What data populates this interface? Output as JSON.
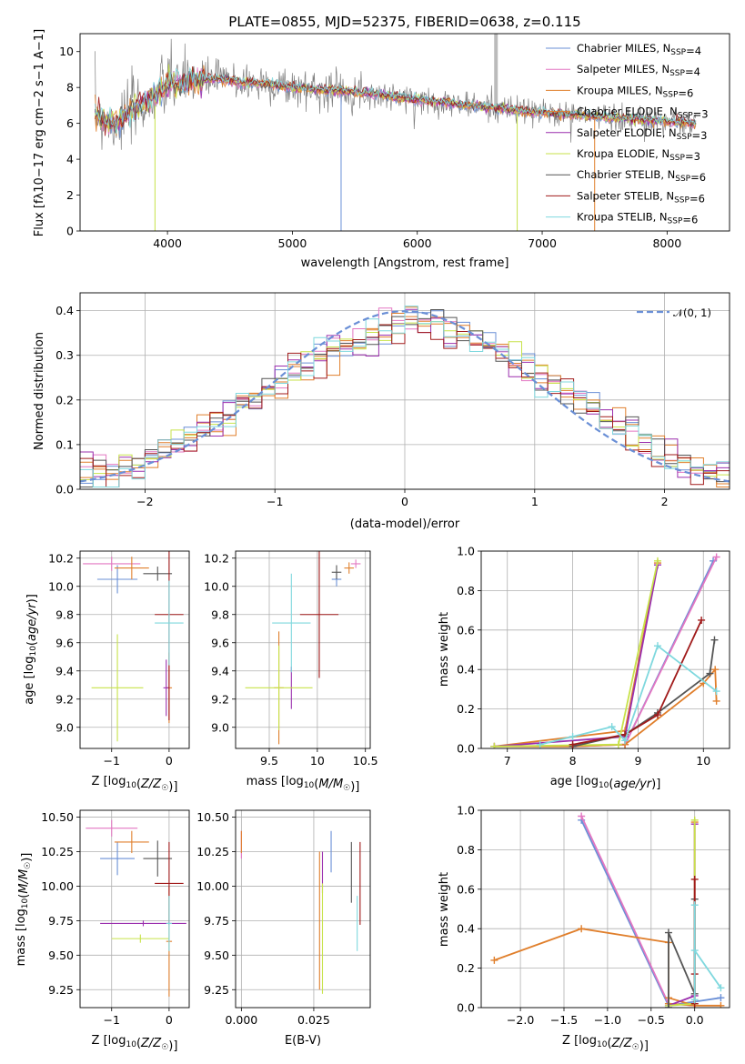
{
  "figure_title": "PLATE=0855, MJD=52375, FIBERID=0638, z=0.115",
  "colors": {
    "Chabrier MILES": "#6a8fd6",
    "Salpeter MILES": "#e377c2",
    "Kroupa MILES": "#e07f2c",
    "Chabrier ELODIE": "#e07f2c",
    "Salpeter ELODIE": "#9b2fae",
    "Kroupa ELODIE": "#c7e24a",
    "Chabrier STELIB": "#555555",
    "Salpeter STELIB": "#a01a1a",
    "Kroupa STELIB": "#7fd8de",
    "data": "#7f7f7f",
    "normal": "#6a8fd6"
  },
  "chart_data": [
    {
      "type": "line",
      "id": "spectrum",
      "title": "PLATE=0855, MJD=52375, FIBERID=0638, z=0.115",
      "xlabel": "wavelength [Angstrom, rest frame]",
      "ylabel": "Flux [fλ10⁻¹⁷ erg cm⁻² s⁻¹ A⁻¹]",
      "xlim": [
        3300,
        8500
      ],
      "ylim": [
        0,
        11
      ],
      "xticks": [
        4000,
        5000,
        6000,
        7000,
        8000
      ],
      "yticks": [
        0,
        2,
        4,
        6,
        8,
        10
      ],
      "grid": false,
      "legend_position": "top-right",
      "legend": [
        "Chabrier MILES, N_SSP=4",
        "Salpeter MILES, N_SSP=4",
        "Kroupa MILES, N_SSP=6",
        "Chabrier ELODIE, N_SSP=3",
        "Salpeter ELODIE, N_SSP=3",
        "Kroupa ELODIE, N_SSP=3",
        "Chabrier STELIB, N_SSP=6",
        "Salpeter STELIB, N_SSP=6",
        "Kroupa STELIB, N_SSP=6"
      ],
      "legend_display": [
        [
          "Chabrier MILES, N",
          "SSP",
          "=4"
        ],
        [
          "Salpeter MILES, N",
          "SSP",
          "=4"
        ],
        [
          "Kroupa MILES, N",
          "SSP",
          "=6"
        ],
        [
          "Chabrier ELODIE, N",
          "SSP",
          "=3"
        ],
        [
          "Salpeter ELODIE, N",
          "SSP",
          "=3"
        ],
        [
          "Kroupa ELODIE, N",
          "SSP",
          "=3"
        ],
        [
          "Chabrier STELIB, N",
          "SSP",
          "=6"
        ],
        [
          "Salpeter STELIB, N",
          "SSP",
          "=6"
        ],
        [
          "Kroupa STELIB, N",
          "SSP",
          "=6"
        ]
      ],
      "continuum_x": [
        3420,
        3500,
        3600,
        3700,
        3800,
        3900,
        4000,
        4100,
        4200,
        4400,
        4600,
        4800,
        5000,
        5200,
        5400,
        5600,
        5800,
        6000,
        6200,
        6400,
        6600,
        6800,
        7000,
        7200,
        7400,
        7600,
        7800,
        8000,
        8200
      ],
      "continuum_y": [
        6.6,
        6.2,
        6.0,
        6.6,
        7.0,
        7.6,
        8.1,
        8.2,
        8.4,
        8.5,
        8.3,
        8.2,
        8.0,
        7.9,
        7.8,
        7.7,
        7.5,
        7.3,
        7.2,
        7.0,
        6.9,
        6.7,
        6.6,
        6.5,
        6.4,
        6.3,
        6.2,
        6.1,
        6.0
      ]
    },
    {
      "type": "histogram",
      "id": "residuals",
      "xlabel": "(data-model)/error",
      "ylabel": "Normed distribution",
      "xlim": [
        -2.5,
        2.5
      ],
      "ylim": [
        0,
        0.44
      ],
      "xticks": [
        -2,
        -1,
        0,
        1,
        2
      ],
      "yticks": [
        0.0,
        0.1,
        0.2,
        0.3,
        0.4
      ],
      "grid": true,
      "legend_position": "top-right",
      "legend": [
        "N(0,1)"
      ],
      "bin_width": 0.1,
      "bin_start": -2.5,
      "mean_values": [
        0.04,
        0.035,
        0.03,
        0.04,
        0.055,
        0.07,
        0.085,
        0.1,
        0.115,
        0.13,
        0.145,
        0.165,
        0.185,
        0.205,
        0.225,
        0.245,
        0.26,
        0.28,
        0.3,
        0.31,
        0.32,
        0.33,
        0.345,
        0.355,
        0.37,
        0.375,
        0.37,
        0.37,
        0.36,
        0.35,
        0.34,
        0.32,
        0.305,
        0.29,
        0.275,
        0.255,
        0.24,
        0.22,
        0.2,
        0.18,
        0.16,
        0.14,
        0.12,
        0.1,
        0.085,
        0.07,
        0.06,
        0.05,
        0.04,
        0.035
      ],
      "series_names": [
        "Chabrier MILES",
        "Salpeter MILES",
        "Kroupa MILES",
        "Chabrier ELODIE",
        "Salpeter ELODIE",
        "Kroupa ELODIE",
        "Chabrier STELIB",
        "Salpeter STELIB",
        "Kroupa STELIB"
      ]
    },
    {
      "type": "errorbar",
      "id": "age-vs-Z",
      "xlabel": "Z [log₁₀(Z/Z☉)]",
      "ylabel": "age  [log₁₀(age/yr)]",
      "xlim": [
        -1.55,
        0.35
      ],
      "ylim": [
        8.85,
        10.25
      ],
      "xticks": [
        -1,
        0
      ],
      "yticks": [
        9.0,
        9.2,
        9.4,
        9.6,
        9.8,
        10.0,
        10.2
      ],
      "grid": true,
      "points": [
        {
          "series": "Chabrier MILES",
          "x": -0.9,
          "xerr": 0.35,
          "y": 10.05,
          "yerr": 0.1
        },
        {
          "series": "Salpeter MILES",
          "x": -1.0,
          "xerr": 0.5,
          "y": 10.16,
          "yerr": 0.05
        },
        {
          "series": "Kroupa MILES",
          "x": -0.65,
          "xerr": 0.3,
          "y": 10.13,
          "yerr": 0.08
        },
        {
          "series": "Chabrier ELODIE",
          "x": 0.0,
          "xerr": 0.05,
          "y": 9.28,
          "yerr": 0.25
        },
        {
          "series": "Salpeter ELODIE",
          "x": -0.05,
          "xerr": 0.05,
          "y": 9.28,
          "yerr": 0.2
        },
        {
          "series": "Kroupa ELODIE",
          "x": -0.9,
          "xerr": 0.45,
          "y": 9.28,
          "yerr": 0.38
        },
        {
          "series": "Chabrier STELIB",
          "x": -0.2,
          "xerr": 0.25,
          "y": 10.09,
          "yerr": 0.05
        },
        {
          "series": "Salpeter STELIB",
          "x": 0.0,
          "xerr": 0.25,
          "y": 9.8,
          "yerr": 0.75
        },
        {
          "series": "Kroupa STELIB",
          "x": 0.0,
          "xerr": 0.25,
          "y": 9.74,
          "yerr": 0.3
        }
      ]
    },
    {
      "type": "errorbar",
      "id": "age-vs-mass",
      "xlabel": "mass [log₁₀(M/M☉)]",
      "ylabel": "",
      "xlim": [
        9.15,
        10.55
      ],
      "ylim": [
        8.85,
        10.25
      ],
      "xticks": [
        9.5,
        10.0,
        10.5
      ],
      "yticks": [
        9.0,
        9.2,
        9.4,
        9.6,
        9.8,
        10.0,
        10.2
      ],
      "grid": true,
      "points": [
        {
          "series": "Chabrier MILES",
          "x": 10.2,
          "xerr": 0.05,
          "y": 10.05,
          "yerr": 0.05
        },
        {
          "series": "Salpeter MILES",
          "x": 10.4,
          "xerr": 0.05,
          "y": 10.16,
          "yerr": 0.03
        },
        {
          "series": "Kroupa MILES",
          "x": 10.33,
          "xerr": 0.05,
          "y": 10.13,
          "yerr": 0.04
        },
        {
          "series": "Chabrier ELODIE",
          "x": 9.6,
          "xerr": 0.05,
          "y": 9.28,
          "yerr": 0.4
        },
        {
          "series": "Salpeter ELODIE",
          "x": 9.73,
          "xerr": 0.01,
          "y": 9.28,
          "yerr": 0.15
        },
        {
          "series": "Kroupa ELODIE",
          "x": 9.6,
          "xerr": 0.35,
          "y": 9.28,
          "yerr": 0.3
        },
        {
          "series": "Chabrier STELIB",
          "x": 10.2,
          "xerr": 0.05,
          "y": 10.1,
          "yerr": 0.05
        },
        {
          "series": "Salpeter STELIB",
          "x": 10.02,
          "xerr": 0.2,
          "y": 9.8,
          "yerr": 0.45
        },
        {
          "series": "Kroupa STELIB",
          "x": 9.73,
          "xerr": 0.2,
          "y": 9.74,
          "yerr": 0.35
        }
      ]
    },
    {
      "type": "line",
      "id": "weight-vs-age",
      "xlabel": "age  [log₁₀(age/yr)]",
      "ylabel": "mass weight",
      "xlim": [
        6.6,
        10.4
      ],
      "ylim": [
        0,
        1
      ],
      "xticks": [
        7,
        8,
        9,
        10
      ],
      "yticks": [
        0.0,
        0.2,
        0.4,
        0.6,
        0.8,
        1.0
      ],
      "grid": true,
      "series": [
        {
          "series": "Chabrier MILES",
          "x": [
            8.0,
            8.8,
            10.15
          ],
          "y": [
            0.01,
            0.02,
            0.95
          ]
        },
        {
          "series": "Salpeter MILES",
          "x": [
            8.0,
            8.8,
            10.2
          ],
          "y": [
            0.01,
            0.02,
            0.97
          ]
        },
        {
          "series": "Kroupa MILES",
          "x": [
            6.8,
            8.0,
            8.8,
            10.0,
            10.18,
            10.2
          ],
          "y": [
            0.01,
            0.01,
            0.02,
            0.33,
            0.4,
            0.24
          ]
        },
        {
          "series": "Chabrier ELODIE",
          "x": [
            6.8,
            8.8,
            9.3
          ],
          "y": [
            0.01,
            0.09,
            0.94
          ]
        },
        {
          "series": "Salpeter ELODIE",
          "x": [
            6.8,
            8.8,
            9.3
          ],
          "y": [
            0.01,
            0.06,
            0.93
          ]
        },
        {
          "series": "Kroupa ELODIE",
          "x": [
            6.8,
            8.7,
            9.3
          ],
          "y": [
            0.01,
            0.02,
            0.95
          ]
        },
        {
          "series": "Chabrier STELIB",
          "x": [
            8.0,
            8.8,
            9.3,
            10.1,
            10.17
          ],
          "y": [
            0.01,
            0.07,
            0.18,
            0.38,
            0.55
          ]
        },
        {
          "series": "Salpeter STELIB",
          "x": [
            8.0,
            8.8,
            9.3,
            9.97
          ],
          "y": [
            0.02,
            0.07,
            0.17,
            0.65
          ]
        },
        {
          "series": "Kroupa STELIB",
          "x": [
            7.5,
            8.0,
            8.6,
            8.8,
            9.3,
            10.2
          ],
          "y": [
            0.02,
            0.06,
            0.11,
            0.04,
            0.52,
            0.29
          ]
        }
      ]
    },
    {
      "type": "errorbar",
      "id": "mass-vs-Z",
      "xlabel": "Z [log₁₀(Z/Z☉)]",
      "ylabel": "mass [log₁₀(M/M☉)]",
      "xlim": [
        -1.55,
        0.35
      ],
      "ylim": [
        9.12,
        10.55
      ],
      "xticks": [
        -1,
        0
      ],
      "yticks": [
        9.25,
        9.5,
        9.75,
        10.0,
        10.25,
        10.5
      ],
      "grid": true,
      "points": [
        {
          "series": "Chabrier MILES",
          "x": -0.9,
          "xerr": 0.3,
          "y": 10.2,
          "yerr": 0.12
        },
        {
          "series": "Salpeter MILES",
          "x": -1.0,
          "xerr": 0.45,
          "y": 10.42,
          "yerr": 0.06
        },
        {
          "series": "Kroupa MILES",
          "x": -0.65,
          "xerr": 0.3,
          "y": 10.32,
          "yerr": 0.08
        },
        {
          "series": "Chabrier ELODIE",
          "x": 0.0,
          "xerr": 0.05,
          "y": 9.6,
          "yerr": 0.4
        },
        {
          "series": "Salpeter ELODIE",
          "x": -0.45,
          "xerr": 0.75,
          "y": 9.73,
          "yerr": 0.02
        },
        {
          "series": "Kroupa ELODIE",
          "x": -0.5,
          "xerr": 0.5,
          "y": 9.62,
          "yerr": 0.03
        },
        {
          "series": "Chabrier STELIB",
          "x": -0.2,
          "xerr": 0.25,
          "y": 10.2,
          "yerr": 0.13
        },
        {
          "series": "Salpeter STELIB",
          "x": 0.0,
          "xerr": 0.25,
          "y": 10.02,
          "yerr": 0.3
        },
        {
          "series": "Kroupa STELIB",
          "x": 0.0,
          "xerr": 0.05,
          "y": 9.73,
          "yerr": 0.2
        }
      ]
    },
    {
      "type": "errorbar",
      "id": "mass-vs-EBV",
      "xlabel": "E(B-V)",
      "ylabel": "",
      "xlim": [
        -0.002,
        0.0445
      ],
      "ylim": [
        9.12,
        10.55
      ],
      "xticks": [
        0.0,
        0.025
      ],
      "yticks": [
        9.25,
        9.5,
        9.75,
        10.0,
        10.25,
        10.5
      ],
      "grid": true,
      "points": [
        {
          "series": "Chabrier MILES",
          "x": 0.031,
          "xerr": 0.0,
          "y": 10.25,
          "yerr": 0.15
        },
        {
          "series": "Salpeter MILES",
          "x": 0.0,
          "xerr": 0.0,
          "y": 10.3,
          "yerr": 0.1
        },
        {
          "series": "Kroupa MILES",
          "x": 0.0,
          "xerr": 0.0,
          "y": 10.32,
          "yerr": 0.08
        },
        {
          "series": "Chabrier ELODIE",
          "x": 0.027,
          "xerr": 0.0,
          "y": 9.75,
          "yerr": 0.5
        },
        {
          "series": "Salpeter ELODIE",
          "x": 0.028,
          "xerr": 0.0,
          "y": 10.1,
          "yerr": 0.15
        },
        {
          "series": "Kroupa ELODIE",
          "x": 0.028,
          "xerr": 0.0,
          "y": 9.62,
          "yerr": 0.4
        },
        {
          "series": "Chabrier STELIB",
          "x": 0.038,
          "xerr": 0.0,
          "y": 10.1,
          "yerr": 0.22
        },
        {
          "series": "Salpeter STELIB",
          "x": 0.041,
          "xerr": 0.0,
          "y": 10.02,
          "yerr": 0.3
        },
        {
          "series": "Kroupa STELIB",
          "x": 0.04,
          "xerr": 0.0,
          "y": 9.73,
          "yerr": 0.2
        }
      ]
    },
    {
      "type": "line",
      "id": "weight-vs-Z",
      "xlabel": "Z [log₁₀(Z/Z☉)]",
      "ylabel": "mass weight",
      "xlim": [
        -2.45,
        0.4
      ],
      "ylim": [
        0,
        1
      ],
      "xticks": [
        -2.0,
        -1.5,
        -1.0,
        -0.5,
        0.0
      ],
      "yticks": [
        0.0,
        0.2,
        0.4,
        0.6,
        0.8,
        1.0
      ],
      "grid": true,
      "series": [
        {
          "series": "Chabrier MILES",
          "x": [
            -1.3,
            -0.3,
            0.3
          ],
          "y": [
            0.95,
            0.01,
            0.05
          ]
        },
        {
          "series": "Salpeter MILES",
          "x": [
            -1.3,
            -0.3,
            0.0
          ],
          "y": [
            0.97,
            0.02,
            0.01
          ]
        },
        {
          "series": "Kroupa MILES",
          "x": [
            -2.3,
            -1.3,
            -0.3,
            -0.3,
            0.0,
            0.3
          ],
          "y": [
            0.24,
            0.4,
            0.33,
            0.02,
            0.01,
            0.01
          ]
        },
        {
          "series": "Chabrier ELODIE",
          "x": [
            -0.3,
            0.0,
            0.0
          ],
          "y": [
            0.05,
            0.01,
            0.94
          ]
        },
        {
          "series": "Salpeter ELODIE",
          "x": [
            -0.3,
            0.0,
            0.0
          ],
          "y": [
            0.01,
            0.06,
            0.93
          ]
        },
        {
          "series": "Kroupa ELODIE",
          "x": [
            -0.3,
            0.0,
            0.0
          ],
          "y": [
            0.01,
            0.02,
            0.95
          ]
        },
        {
          "series": "Chabrier STELIB",
          "x": [
            -0.3,
            -0.3,
            0.0,
            0.0
          ],
          "y": [
            0.0,
            0.38,
            0.07,
            0.55
          ]
        },
        {
          "series": "Salpeter STELIB",
          "x": [
            0.0,
            0.0,
            0.0
          ],
          "y": [
            0.02,
            0.17,
            0.65
          ]
        },
        {
          "series": "Kroupa STELIB",
          "x": [
            0.0,
            0.0,
            0.0,
            0.3
          ],
          "y": [
            0.52,
            0.04,
            0.29,
            0.1
          ]
        }
      ]
    }
  ]
}
